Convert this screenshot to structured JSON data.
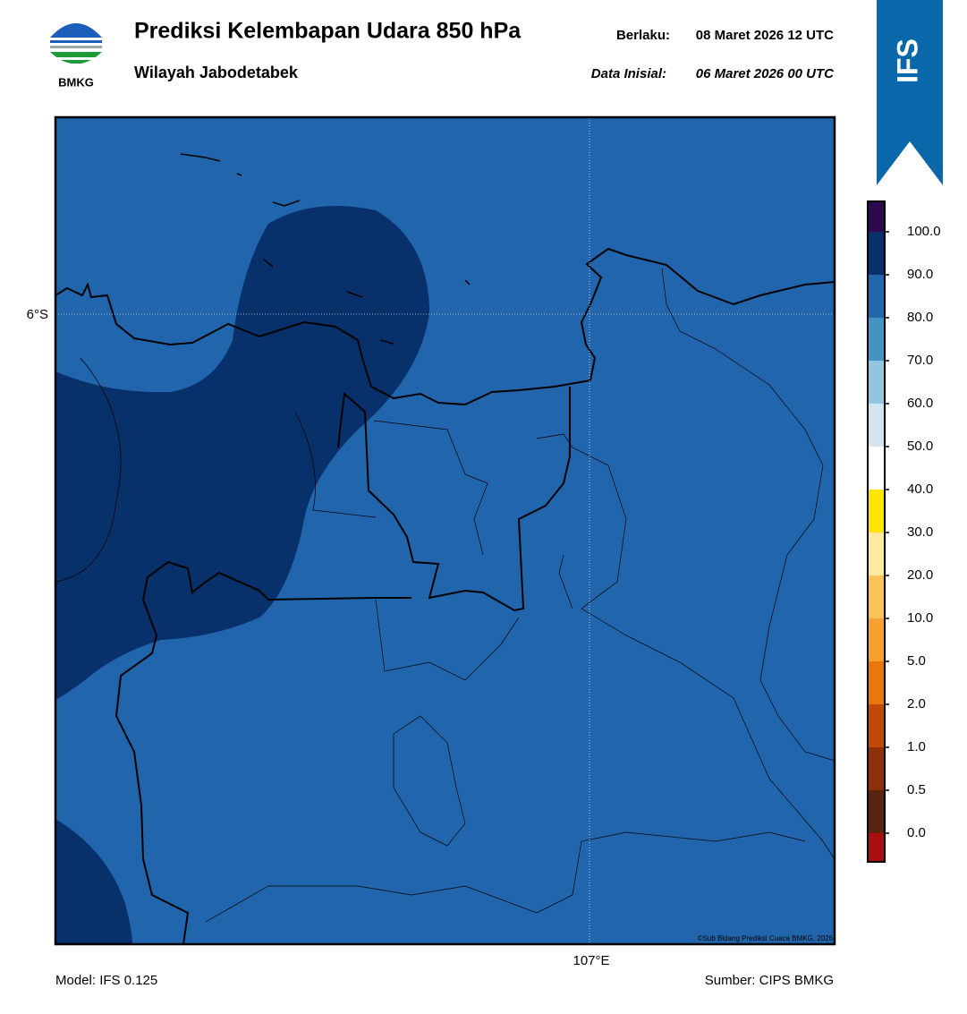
{
  "header": {
    "logo": "BMKG",
    "title": "Prediksi Kelembapan Udara 850 hPa",
    "subtitle": "Wilayah Jabodetabek",
    "valid_label": "Berlaku:",
    "valid": "08 Maret 2026 12 UTC",
    "init_label": "Data Inisial:",
    "init": "06 Maret 2026 00 UTC",
    "badge": "IFS"
  },
  "map": {
    "lat_label": "6°S",
    "lon_label": "107°E",
    "copyright": "©Sub Bidang Prediksi Cuaca BMKG, 2026"
  },
  "colorbar": {
    "labels": [
      "100.0",
      "90.0",
      "80.0",
      "70.0",
      "60.0",
      "50.0",
      "40.0",
      "30.0",
      "20.0",
      "10.0",
      "5.0",
      "2.0",
      "1.0",
      "0.5",
      "0.0"
    ],
    "colors": [
      "#2d0a4e",
      "#08306b",
      "#2166ac",
      "#4393c3",
      "#92c5de",
      "#d1e5f0",
      "#ffffff",
      "#ffe600",
      "#ffe9a0",
      "#fdc35a",
      "#f7a030",
      "#e8780e",
      "#c04a08",
      "#8b3008",
      "#5a2410",
      "#a81010",
      "#e8402a"
    ]
  },
  "footer": {
    "model": "Model: IFS 0.125",
    "source": "Sumber: CIPS BMKG"
  }
}
